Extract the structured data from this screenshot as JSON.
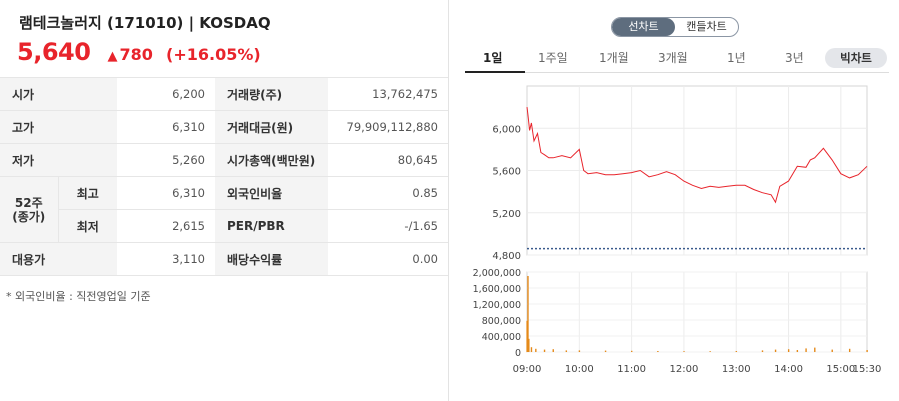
{
  "header": {
    "title": "램테크놀러지 (171010) | KOSDAQ",
    "price": "5,640",
    "change_symbol": "▲",
    "change": "780",
    "change_pct": "(+16.05%)",
    "up_color": "#e8242b"
  },
  "info_table": {
    "open_label": "시가",
    "open": "6,200",
    "high_label": "고가",
    "high": "6,310",
    "low_label": "저가",
    "low": "5,260",
    "w52_label_1": "52주",
    "w52_label_2": "(종가)",
    "w52_high_label": "최고",
    "w52_high": "6,310",
    "w52_low_label": "최저",
    "w52_low": "2,615",
    "substitute_label": "대용가",
    "substitute": "3,110",
    "volume_label": "거래량(주)",
    "volume": "13,762,475",
    "value_label": "거래대금(원)",
    "value": "79,909,112,880",
    "mcap_label": "시가총액(백만원)",
    "mcap": "80,645",
    "foreign_label": "외국인비율",
    "foreign": "0.85",
    "perpbr_label": "PER/PBR",
    "perpbr": "-/1.65",
    "dividend_label": "배당수익률",
    "dividend": "0.00"
  },
  "note": "* 외국인비율 : 직전영업일 기준",
  "chart_controls": {
    "toggle": [
      "선차트",
      "캔들차트"
    ],
    "active_toggle": "선차트",
    "tabs": [
      "1일",
      "1주일",
      "1개월",
      "3개월",
      "1년",
      "3년"
    ],
    "active_tab": "1일",
    "big_chart": "빅차트"
  },
  "chart_data": {
    "type": "line",
    "x_ticks": [
      "09:00",
      "10:00",
      "11:00",
      "12:00",
      "13:00",
      "14:00",
      "15:00",
      "15:30"
    ],
    "price_series": {
      "color": "#e8242b",
      "ylim": [
        4800,
        6400
      ],
      "yticks": [
        "6,000",
        "5,600",
        "5,200",
        "4,800"
      ],
      "x": [
        "09:00",
        "09:01",
        "09:03",
        "09:05",
        "09:08",
        "09:12",
        "09:16",
        "09:20",
        "09:25",
        "09:30",
        "09:40",
        "09:50",
        "10:00",
        "10:05",
        "10:10",
        "10:20",
        "10:30",
        "10:40",
        "10:50",
        "11:00",
        "11:10",
        "11:20",
        "11:30",
        "11:40",
        "11:50",
        "12:00",
        "12:10",
        "12:20",
        "12:30",
        "12:40",
        "12:50",
        "13:00",
        "13:10",
        "13:20",
        "13:30",
        "13:40",
        "13:45",
        "13:50",
        "14:00",
        "14:10",
        "14:20",
        "14:25",
        "14:30",
        "14:40",
        "14:50",
        "15:00",
        "15:10",
        "15:20",
        "15:30"
      ],
      "y": [
        6200,
        6130,
        5980,
        6050,
        5880,
        5950,
        5770,
        5750,
        5720,
        5720,
        5740,
        5720,
        5800,
        5600,
        5570,
        5580,
        5560,
        5560,
        5570,
        5580,
        5600,
        5540,
        5560,
        5590,
        5560,
        5500,
        5460,
        5430,
        5450,
        5440,
        5450,
        5460,
        5460,
        5420,
        5390,
        5370,
        5300,
        5450,
        5500,
        5640,
        5630,
        5700,
        5720,
        5810,
        5700,
        5570,
        5530,
        5560,
        5640
      ],
      "reference": 4860,
      "reference_color": "#3a5a8c"
    },
    "volume_series": {
      "color": "#e58a1a",
      "ylim": [
        0,
        2000000
      ],
      "yticks": [
        "2,000,000",
        "1,600,000",
        "1,200,000",
        "800,000",
        "400,000",
        "0"
      ],
      "x": [
        "09:00",
        "09:01",
        "09:02",
        "09:05",
        "09:10",
        "09:20",
        "09:30",
        "09:45",
        "10:00",
        "10:30",
        "11:00",
        "11:30",
        "12:00",
        "12:30",
        "13:00",
        "13:30",
        "13:45",
        "14:00",
        "14:10",
        "14:20",
        "14:30",
        "14:50",
        "15:10",
        "15:30"
      ],
      "y": [
        780000,
        1900000,
        330000,
        120000,
        80000,
        60000,
        70000,
        40000,
        40000,
        35000,
        30000,
        25000,
        20000,
        20000,
        25000,
        40000,
        60000,
        70000,
        50000,
        90000,
        110000,
        60000,
        80000,
        50000
      ]
    }
  }
}
